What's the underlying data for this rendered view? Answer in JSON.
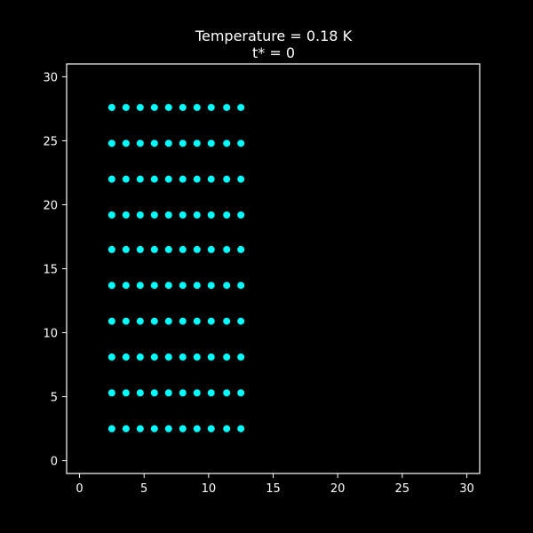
{
  "chart_data": {
    "type": "scatter",
    "title": "Temperature = 0.18 K",
    "subtitle": "t* = 0",
    "xlabel": "",
    "ylabel": "",
    "xlim": [
      -1,
      31
    ],
    "ylim": [
      -1,
      31
    ],
    "grid": false,
    "background": "#000000",
    "colors": {
      "marker": "#00ffff",
      "axes": "#ffffff",
      "text": "#ffffff"
    },
    "x_ticks": [
      {
        "value": 0,
        "label": "0"
      },
      {
        "value": 5,
        "label": "5"
      },
      {
        "value": 10,
        "label": "10"
      },
      {
        "value": 15,
        "label": "15"
      },
      {
        "value": 20,
        "label": "20"
      },
      {
        "value": 25,
        "label": "25"
      },
      {
        "value": 30,
        "label": "30"
      }
    ],
    "y_ticks": [
      {
        "value": 0,
        "label": "0"
      },
      {
        "value": 5,
        "label": "5"
      },
      {
        "value": 10,
        "label": "10"
      },
      {
        "value": 15,
        "label": "15"
      },
      {
        "value": 20,
        "label": "20"
      },
      {
        "value": 25,
        "label": "25"
      },
      {
        "value": 30,
        "label": "30"
      }
    ],
    "x_positions": [
      2.5,
      3.6,
      4.7,
      5.8,
      6.9,
      8.0,
      9.1,
      10.2,
      11.4,
      12.5
    ],
    "y_positions": [
      2.5,
      5.3,
      8.1,
      10.9,
      13.7,
      16.5,
      19.2,
      22.0,
      24.8,
      27.6
    ]
  }
}
